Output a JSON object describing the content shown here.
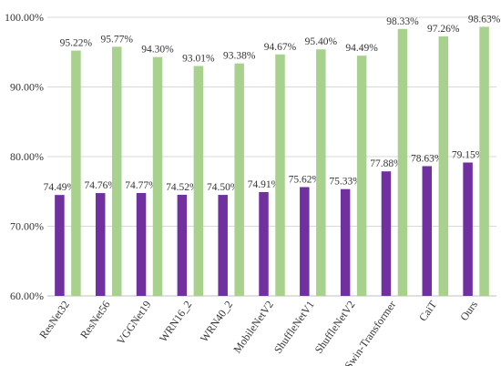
{
  "chart_data": {
    "type": "bar",
    "categories": [
      "ResNet32",
      "ResNet56",
      "VGGNet19",
      "WRN16_2",
      "WRN40_2",
      "MobileNetV2",
      "ShuffleNetV1",
      "ShuffleNetV2",
      "Swin-Transformer",
      "CaiT",
      "Ours"
    ],
    "series": [
      {
        "color": "#7030a0",
        "values": [
          74.49,
          74.76,
          74.77,
          74.52,
          74.5,
          74.91,
          75.62,
          75.33,
          77.88,
          78.63,
          79.15
        ],
        "labels": [
          "74.49%",
          "74.76%",
          "74.77%",
          "74.52%",
          "74.50%",
          "74.91%",
          "75.62%",
          "75.33%",
          "77.88%",
          "78.63%",
          "79.15%"
        ]
      },
      {
        "color": "#a9d18e",
        "values": [
          95.22,
          95.77,
          94.3,
          93.01,
          93.38,
          94.67,
          95.4,
          94.49,
          98.33,
          97.26,
          98.63
        ],
        "labels": [
          "95.22%",
          "95.77%",
          "94.30%",
          "93.01%",
          "93.38%",
          "94.67%",
          "95.40%",
          "94.49%",
          "98.33%",
          "97.26%",
          "98.63%"
        ]
      }
    ],
    "ylim": [
      60,
      100
    ],
    "yticks": [
      60,
      70,
      80,
      90,
      100
    ],
    "ytick_labels": [
      "60.00%",
      "70.00%",
      "80.00%",
      "90.00%",
      "100.00%"
    ],
    "grid": true,
    "legend": "none"
  }
}
